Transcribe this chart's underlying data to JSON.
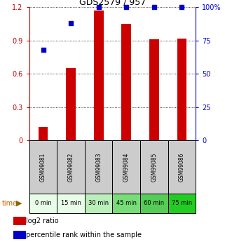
{
  "title": "GDS2579 / 957",
  "samples": [
    "GSM99081",
    "GSM99082",
    "GSM99083",
    "GSM99084",
    "GSM99085",
    "GSM99086"
  ],
  "time_labels": [
    "0 min",
    "15 min",
    "30 min",
    "45 min",
    "60 min",
    "75 min"
  ],
  "log2_ratio": [
    0.12,
    0.65,
    1.17,
    1.05,
    0.91,
    0.92
  ],
  "percentile_rank": [
    68,
    88,
    100,
    100,
    100,
    100
  ],
  "bar_color": "#cc0000",
  "dot_color": "#0000cc",
  "bar_width": 0.35,
  "ylim_left": [
    0,
    1.2
  ],
  "ylim_right": [
    0,
    100
  ],
  "yticks_left": [
    0,
    0.3,
    0.6,
    0.9,
    1.2
  ],
  "yticks_right": [
    0,
    25,
    50,
    75,
    100
  ],
  "ytick_labels_left": [
    "0",
    "0.3",
    "0.6",
    "0.9",
    "1.2"
  ],
  "ytick_labels_right": [
    "0",
    "25",
    "50",
    "75",
    "100%"
  ],
  "left_axis_color": "#cc0000",
  "right_axis_color": "#0000cc",
  "sample_bg_color": "#cccccc",
  "time_color_map": [
    "#e8fce8",
    "#e8fce8",
    "#bbeebb",
    "#77dd77",
    "#55cc55",
    "#22cc22"
  ],
  "legend_log2_color": "#cc0000",
  "legend_pct_color": "#0000cc",
  "time_label_color": "#555500"
}
